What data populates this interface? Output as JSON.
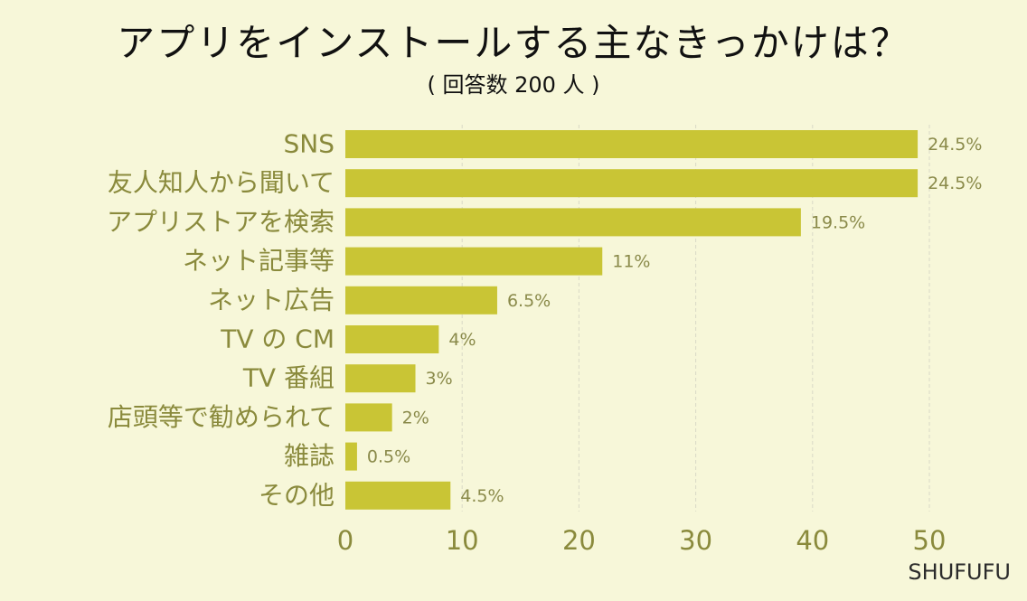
{
  "colors": {
    "background": "#f7f7d9",
    "bar": "#c9c535",
    "category_text": "#8a8a3c",
    "value_text": "#8a8a4a",
    "tick_text": "#8a8a3c",
    "grid": "#d9d9c6",
    "title_text": "#111111"
  },
  "watermark": "SHUFUFU",
  "chart_data": {
    "type": "bar",
    "orientation": "horizontal",
    "title": "アプリをインストールする主なきっかけは？",
    "subtitle": "( 回答数 200 人 )",
    "xlabel": "",
    "ylabel": "",
    "xlim": [
      0,
      50
    ],
    "xticks": [
      0,
      10,
      20,
      30,
      40,
      50
    ],
    "grid": true,
    "categories": [
      "SNS",
      "友人知人から聞いて",
      "アプリストアを検索",
      "ネット記事等",
      "ネット広告",
      "TV の CM",
      "TV 番組",
      "店頭等で勧められて",
      "雑誌",
      "その他"
    ],
    "values": [
      49,
      49,
      39,
      22,
      13,
      8,
      6,
      4,
      1,
      9
    ],
    "value_labels": [
      "24.5%",
      "24.5%",
      "19.5%",
      "11%",
      "6.5%",
      "4%",
      "3%",
      "2%",
      "0.5%",
      "4.5%"
    ]
  }
}
